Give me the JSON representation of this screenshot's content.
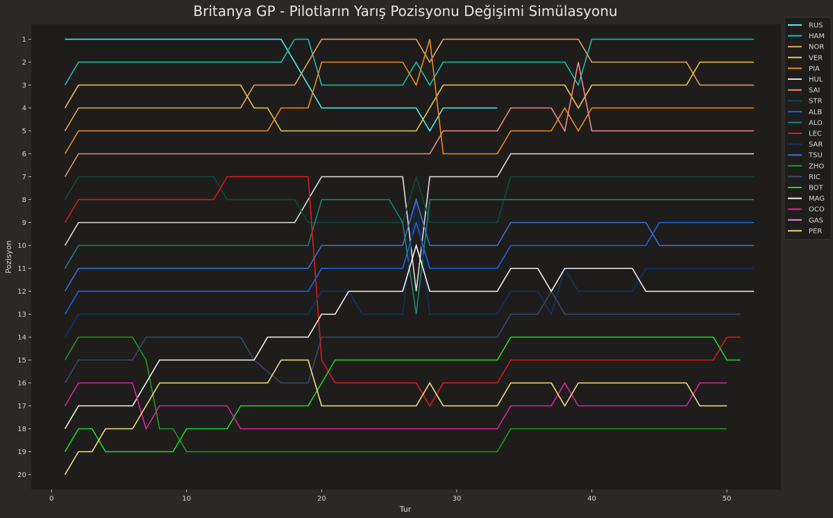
{
  "chart_data": {
    "type": "line",
    "title": "Britanya GP - Pilotların Yarış Pozisyonu Değişimi Simülasyonu",
    "xlabel": "Tur",
    "ylabel": "Pozisyon",
    "xlim": [
      -1.5,
      54
    ],
    "ylim": [
      20.65,
      0.35
    ],
    "y_inverted": true,
    "xticks": [
      0,
      10,
      20,
      30,
      40,
      50
    ],
    "yticks": [
      1,
      2,
      3,
      4,
      5,
      6,
      7,
      8,
      9,
      10,
      11,
      12,
      13,
      14,
      15,
      16,
      17,
      18,
      19,
      20
    ],
    "grid": false,
    "legend_position": "top-right",
    "series": [
      {
        "name": "RUS",
        "color": "#4ff2f2",
        "x": [
          1,
          17,
          18,
          19,
          20,
          21,
          27,
          28,
          29,
          33
        ],
        "y": [
          1,
          1,
          2,
          3,
          4,
          4,
          4,
          5,
          4,
          4
        ]
      },
      {
        "name": "HAM",
        "color": "#1fbfb0",
        "x": [
          1,
          2,
          17,
          18,
          19,
          20,
          26,
          27,
          28,
          29,
          38,
          39,
          40,
          52
        ],
        "y": [
          3,
          2,
          2,
          1,
          1,
          3,
          3,
          2,
          3,
          2,
          2,
          3,
          1,
          1
        ]
      },
      {
        "name": "NOR",
        "color": "#e8a65c",
        "x": [
          1,
          2,
          14,
          15,
          18,
          19,
          20,
          27,
          28,
          29,
          39,
          40,
          47,
          48,
          52
        ],
        "y": [
          5,
          4,
          4,
          3,
          3,
          2,
          1,
          1,
          2,
          1,
          1,
          2,
          2,
          3,
          3
        ]
      },
      {
        "name": "VER",
        "color": "#f2c744",
        "x": [
          1,
          2,
          14,
          15,
          16,
          17,
          27,
          28,
          29,
          38,
          39,
          40,
          47,
          48,
          52
        ],
        "y": [
          4,
          3,
          3,
          4,
          4,
          5,
          5,
          4,
          3,
          3,
          4,
          3,
          3,
          2,
          2
        ]
      },
      {
        "name": "PIA",
        "color": "#f08c1e",
        "x": [
          1,
          2,
          16,
          17,
          19,
          20,
          26,
          27,
          28,
          29,
          33,
          34,
          37,
          38,
          39,
          40,
          52
        ],
        "y": [
          6,
          5,
          5,
          4,
          4,
          2,
          2,
          3,
          1,
          6,
          6,
          5,
          5,
          4,
          5,
          4,
          4
        ]
      },
      {
        "name": "HUL",
        "color": "#e0e0e0",
        "x": [
          1,
          2,
          18,
          20,
          26,
          27,
          28,
          33,
          34,
          52
        ],
        "y": [
          10,
          9,
          9,
          7,
          7,
          12,
          7,
          7,
          6,
          6
        ]
      },
      {
        "name": "SAI",
        "color": "#f28b82",
        "x": [
          1,
          2,
          28,
          29,
          33,
          34,
          37,
          38,
          39,
          40,
          52
        ],
        "y": [
          7,
          6,
          6,
          5,
          5,
          4,
          4,
          5,
          2,
          5,
          5
        ]
      },
      {
        "name": "STR",
        "color": "#0b4d3f",
        "x": [
          1,
          2,
          12,
          13,
          18,
          19,
          26,
          27,
          28,
          33,
          34,
          52
        ],
        "y": [
          8,
          7,
          7,
          8,
          8,
          9,
          9,
          7,
          9,
          9,
          7,
          7
        ]
      },
      {
        "name": "ALB",
        "color": "#1a66f2",
        "x": [
          1,
          2,
          19,
          20,
          26,
          27,
          28,
          33,
          34,
          44,
          45,
          52
        ],
        "y": [
          13,
          12,
          12,
          11,
          11,
          9,
          11,
          11,
          10,
          10,
          9,
          9
        ]
      },
      {
        "name": "ALO",
        "color": "#168a78",
        "x": [
          1,
          2,
          19,
          20,
          25,
          26,
          27,
          28,
          33,
          34,
          52
        ],
        "y": [
          11,
          10,
          10,
          8,
          8,
          9,
          13,
          8,
          8,
          8,
          8
        ]
      },
      {
        "name": "LEC",
        "color": "#e01a1a",
        "x": [
          1,
          2,
          12,
          13,
          19,
          20,
          21,
          27,
          28,
          29,
          33,
          34,
          49,
          50,
          51
        ],
        "y": [
          9,
          8,
          8,
          7,
          7,
          15,
          16,
          16,
          17,
          16,
          16,
          15,
          15,
          14,
          14
        ]
      },
      {
        "name": "SAR",
        "color": "#16306b",
        "x": [
          1,
          2,
          19,
          20,
          22,
          23,
          26,
          27,
          28,
          33,
          34,
          36,
          37,
          38,
          39,
          40,
          43,
          44,
          52
        ],
        "y": [
          14,
          13,
          13,
          12,
          12,
          13,
          13,
          8,
          13,
          13,
          12,
          12,
          13,
          11,
          12,
          12,
          12,
          11,
          11
        ]
      },
      {
        "name": "TSU",
        "color": "#3d73d9",
        "x": [
          1,
          2,
          19,
          20,
          26,
          27,
          28,
          33,
          34,
          44,
          45,
          52
        ],
        "y": [
          12,
          11,
          11,
          10,
          10,
          8,
          10,
          10,
          9,
          9,
          10,
          10
        ]
      },
      {
        "name": "ZHO",
        "color": "#1f9e1f",
        "x": [
          1,
          2,
          6,
          7,
          8,
          9,
          10,
          33,
          34,
          50
        ],
        "y": [
          15,
          14,
          14,
          15,
          18,
          18,
          19,
          19,
          18,
          18
        ]
      },
      {
        "name": "RIC",
        "color": "#3a4a66",
        "x": [
          1,
          2,
          6,
          7,
          14,
          15,
          17,
          19,
          20,
          33,
          34,
          36,
          37,
          38,
          51
        ],
        "y": [
          16,
          15,
          15,
          14,
          14,
          15,
          16,
          16,
          14,
          14,
          13,
          13,
          12,
          13,
          13
        ]
      },
      {
        "name": "BOT",
        "color": "#22d922",
        "x": [
          1,
          2,
          3,
          4,
          9,
          10,
          13,
          14,
          19,
          20,
          21,
          33,
          34,
          49,
          50,
          51
        ],
        "y": [
          19,
          18,
          18,
          19,
          19,
          18,
          18,
          17,
          17,
          16,
          15,
          15,
          14,
          14,
          15,
          15
        ]
      },
      {
        "name": "MAG",
        "color": "#f5f5f5",
        "x": [
          1,
          2,
          6,
          8,
          15,
          16,
          19,
          20,
          21,
          22,
          26,
          27,
          28,
          33,
          34,
          36,
          37,
          38,
          39,
          43,
          44,
          52
        ],
        "y": [
          18,
          17,
          17,
          15,
          15,
          14,
          14,
          13,
          13,
          12,
          12,
          10,
          12,
          12,
          11,
          11,
          12,
          11,
          11,
          11,
          12,
          12
        ]
      },
      {
        "name": "OCO",
        "color": "#e0249e",
        "x": [
          1,
          2,
          6,
          7,
          8,
          13,
          14,
          33,
          34,
          37,
          38,
          39,
          47,
          48,
          50
        ],
        "y": [
          17,
          16,
          16,
          18,
          17,
          17,
          18,
          18,
          17,
          17,
          16,
          17,
          17,
          16,
          16
        ]
      },
      {
        "name": "GAS",
        "color": "#f28cc6",
        "x": [],
        "y": []
      },
      {
        "name": "PER",
        "color": "#f5e079",
        "x": [
          1,
          2,
          3,
          4,
          6,
          8,
          16,
          17,
          19,
          20,
          27,
          28,
          29,
          33,
          34,
          37,
          38,
          39,
          47,
          48,
          50
        ],
        "y": [
          20,
          19,
          19,
          18,
          18,
          16,
          16,
          15,
          15,
          17,
          17,
          16,
          17,
          17,
          16,
          16,
          17,
          16,
          16,
          17,
          17
        ]
      }
    ]
  }
}
